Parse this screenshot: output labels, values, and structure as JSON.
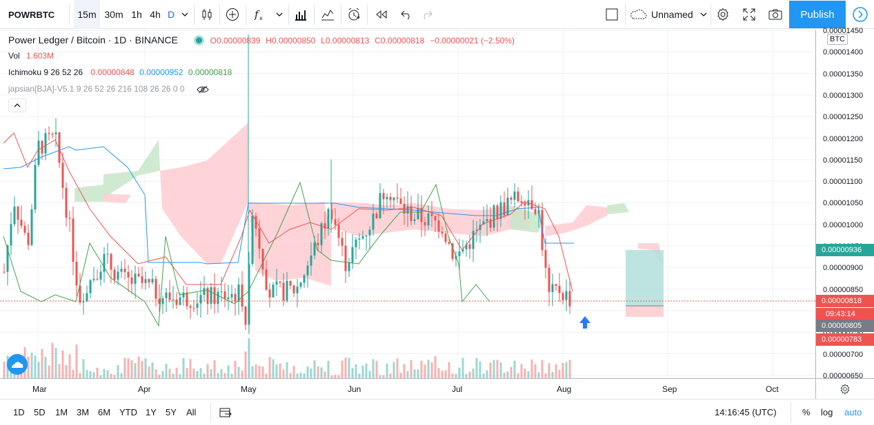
{
  "toolbar": {
    "symbol": "POWRBTC",
    "intervals": [
      "15m",
      "30m",
      "1h",
      "4h",
      "D"
    ],
    "layout_name": "Unnamed",
    "publish_label": "Publish"
  },
  "legend": {
    "title": "Power Ledger / Bitcoin · 1D · BINANCE",
    "open": "O0.00000839",
    "high": "H0.00000850",
    "low": "L0.00000813",
    "close": "C0.00000818",
    "change": "−0.00000021 (−2.50%)",
    "vol_label": "Vol",
    "vol_value": "1.603M",
    "ichimoku_label": "Ichimoku 9 26 52 26",
    "ichimoku_v1": "0.00000848",
    "ichimoku_v2": "0.00000952",
    "ichimoku_v3": "0.00000818",
    "script_label": "japsian[BJA]-V5.1 9 26 52 26 216 108 26 26 0 0"
  },
  "price_axis": {
    "currency": "BTC",
    "labels": [
      "0.00001450",
      "0.00001400",
      "0.00001350",
      "0.00001300",
      "0.00001250",
      "0.00001200",
      "0.00001150",
      "0.00001100",
      "0.00001050",
      "0.00001000",
      "0.00000950",
      "0.00000900",
      "0.00000850",
      "0.00000800",
      "0.00000750",
      "0.00000700",
      "0.00000650"
    ],
    "tags": {
      "green": "0.00000936",
      "last": "0.00000818",
      "countdown": "09:43:14",
      "gray": "0.00000805",
      "red": "0.00000783"
    }
  },
  "time_axis": {
    "labels": [
      "Mar",
      "Apr",
      "May",
      "Jun",
      "Jul",
      "Aug",
      "Sep",
      "Oct"
    ]
  },
  "bottom": {
    "ranges": [
      "1D",
      "5D",
      "1M",
      "3M",
      "6M",
      "YTD",
      "1Y",
      "5Y",
      "All"
    ],
    "clock": "14:16:45 (UTC)",
    "percent": "%",
    "log": "log",
    "auto": "auto"
  },
  "colors": {
    "up": "#26a69a",
    "down": "#ef5350",
    "accent": "#2196f3",
    "kumo_bull": "#c8e6c9",
    "kumo_bear": "#ffcdd2"
  }
}
